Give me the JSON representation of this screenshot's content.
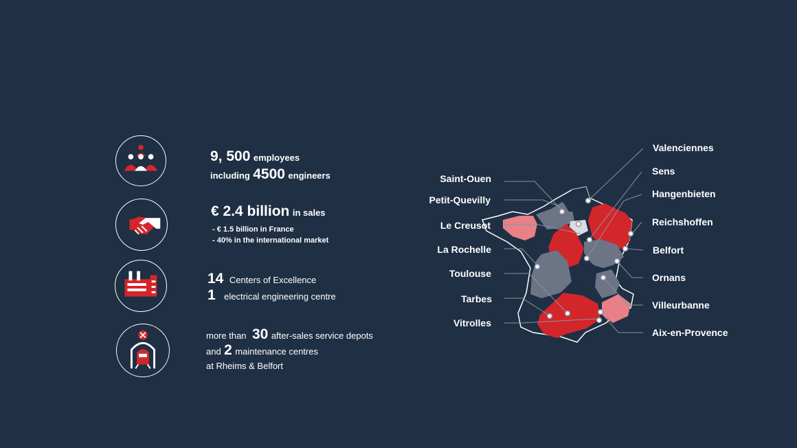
{
  "stats": {
    "employees": {
      "count": "9, 500",
      "count_suffix": "employees",
      "prefix2": "including",
      "engineers": "4500",
      "engineers_suffix": "engineers"
    },
    "sales": {
      "amount": "€ 2.4 billion",
      "suffix": "in sales",
      "bullet1": "- € 1.5 billion in France",
      "bullet2": "- 40% in the international market"
    },
    "centres": {
      "n1": "14",
      "label1": "Centers of Excellence",
      "n2": "1",
      "label2": "electrical engineering centre"
    },
    "depots": {
      "prefix": "more than",
      "n1": "30",
      "label1": "after-sales service depots",
      "and": "and",
      "n2": "2",
      "label2": "maintenance centres",
      "line3": "at Rheims & Belfort"
    }
  },
  "icons": [
    "people-group-icon",
    "handshake-icon",
    "factory-icon",
    "train-service-icon"
  ],
  "cities_left": [
    "Saint-Ouen",
    "Petit-Quevilly",
    "Le Creusot",
    "La Rochelle",
    "Toulouse",
    "Tarbes",
    "Vitrolles"
  ],
  "cities_right": [
    "Valenciennes",
    "Sens",
    "Hangenbieten",
    "Reichshoffen",
    "Belfort",
    "Ornans",
    "Villeurbanne",
    "Aix-en-Provence"
  ],
  "colors": {
    "background": "#1f2f44",
    "red": "#d3262b",
    "pink": "#e88088",
    "grey": "#6c7486",
    "light": "#d9dce2"
  }
}
